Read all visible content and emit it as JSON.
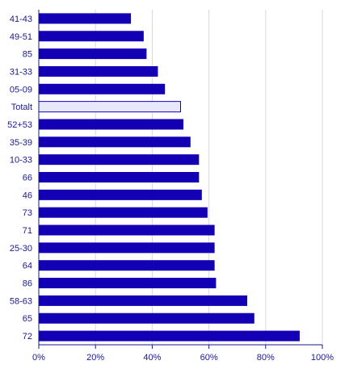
{
  "chart_data": {
    "type": "bar",
    "orientation": "horizontal",
    "title": "",
    "xlabel": "",
    "ylabel": "",
    "xlim": [
      0,
      100
    ],
    "x_ticks": [
      "0%",
      "20%",
      "40%",
      "60%",
      "80%",
      "100%"
    ],
    "x_tick_values": [
      0,
      20,
      40,
      60,
      80,
      100
    ],
    "grid": true,
    "legend": "none",
    "categories": [
      "41-43",
      "49-51",
      "85",
      "31-33",
      "05-09",
      "Totalt",
      "52+53",
      "35-39",
      "10-33",
      "66",
      "46",
      "73",
      "71",
      "25-30",
      "64",
      "86",
      "58-63",
      "65",
      "72"
    ],
    "values": [
      32.5,
      37,
      38,
      42,
      44.5,
      50,
      51,
      53.5,
      56.5,
      56.5,
      57.5,
      59.5,
      62,
      62,
      62,
      62.5,
      73.5,
      76,
      92
    ],
    "highlight_category": "Totalt",
    "colors": {
      "bar": "#1400b4",
      "highlight_fill": "#e8e8fb",
      "highlight_stroke": "#1400b4",
      "grid": "#d9d9d9",
      "axis": "#1a1a8a",
      "text": "#1a1a8a"
    }
  }
}
